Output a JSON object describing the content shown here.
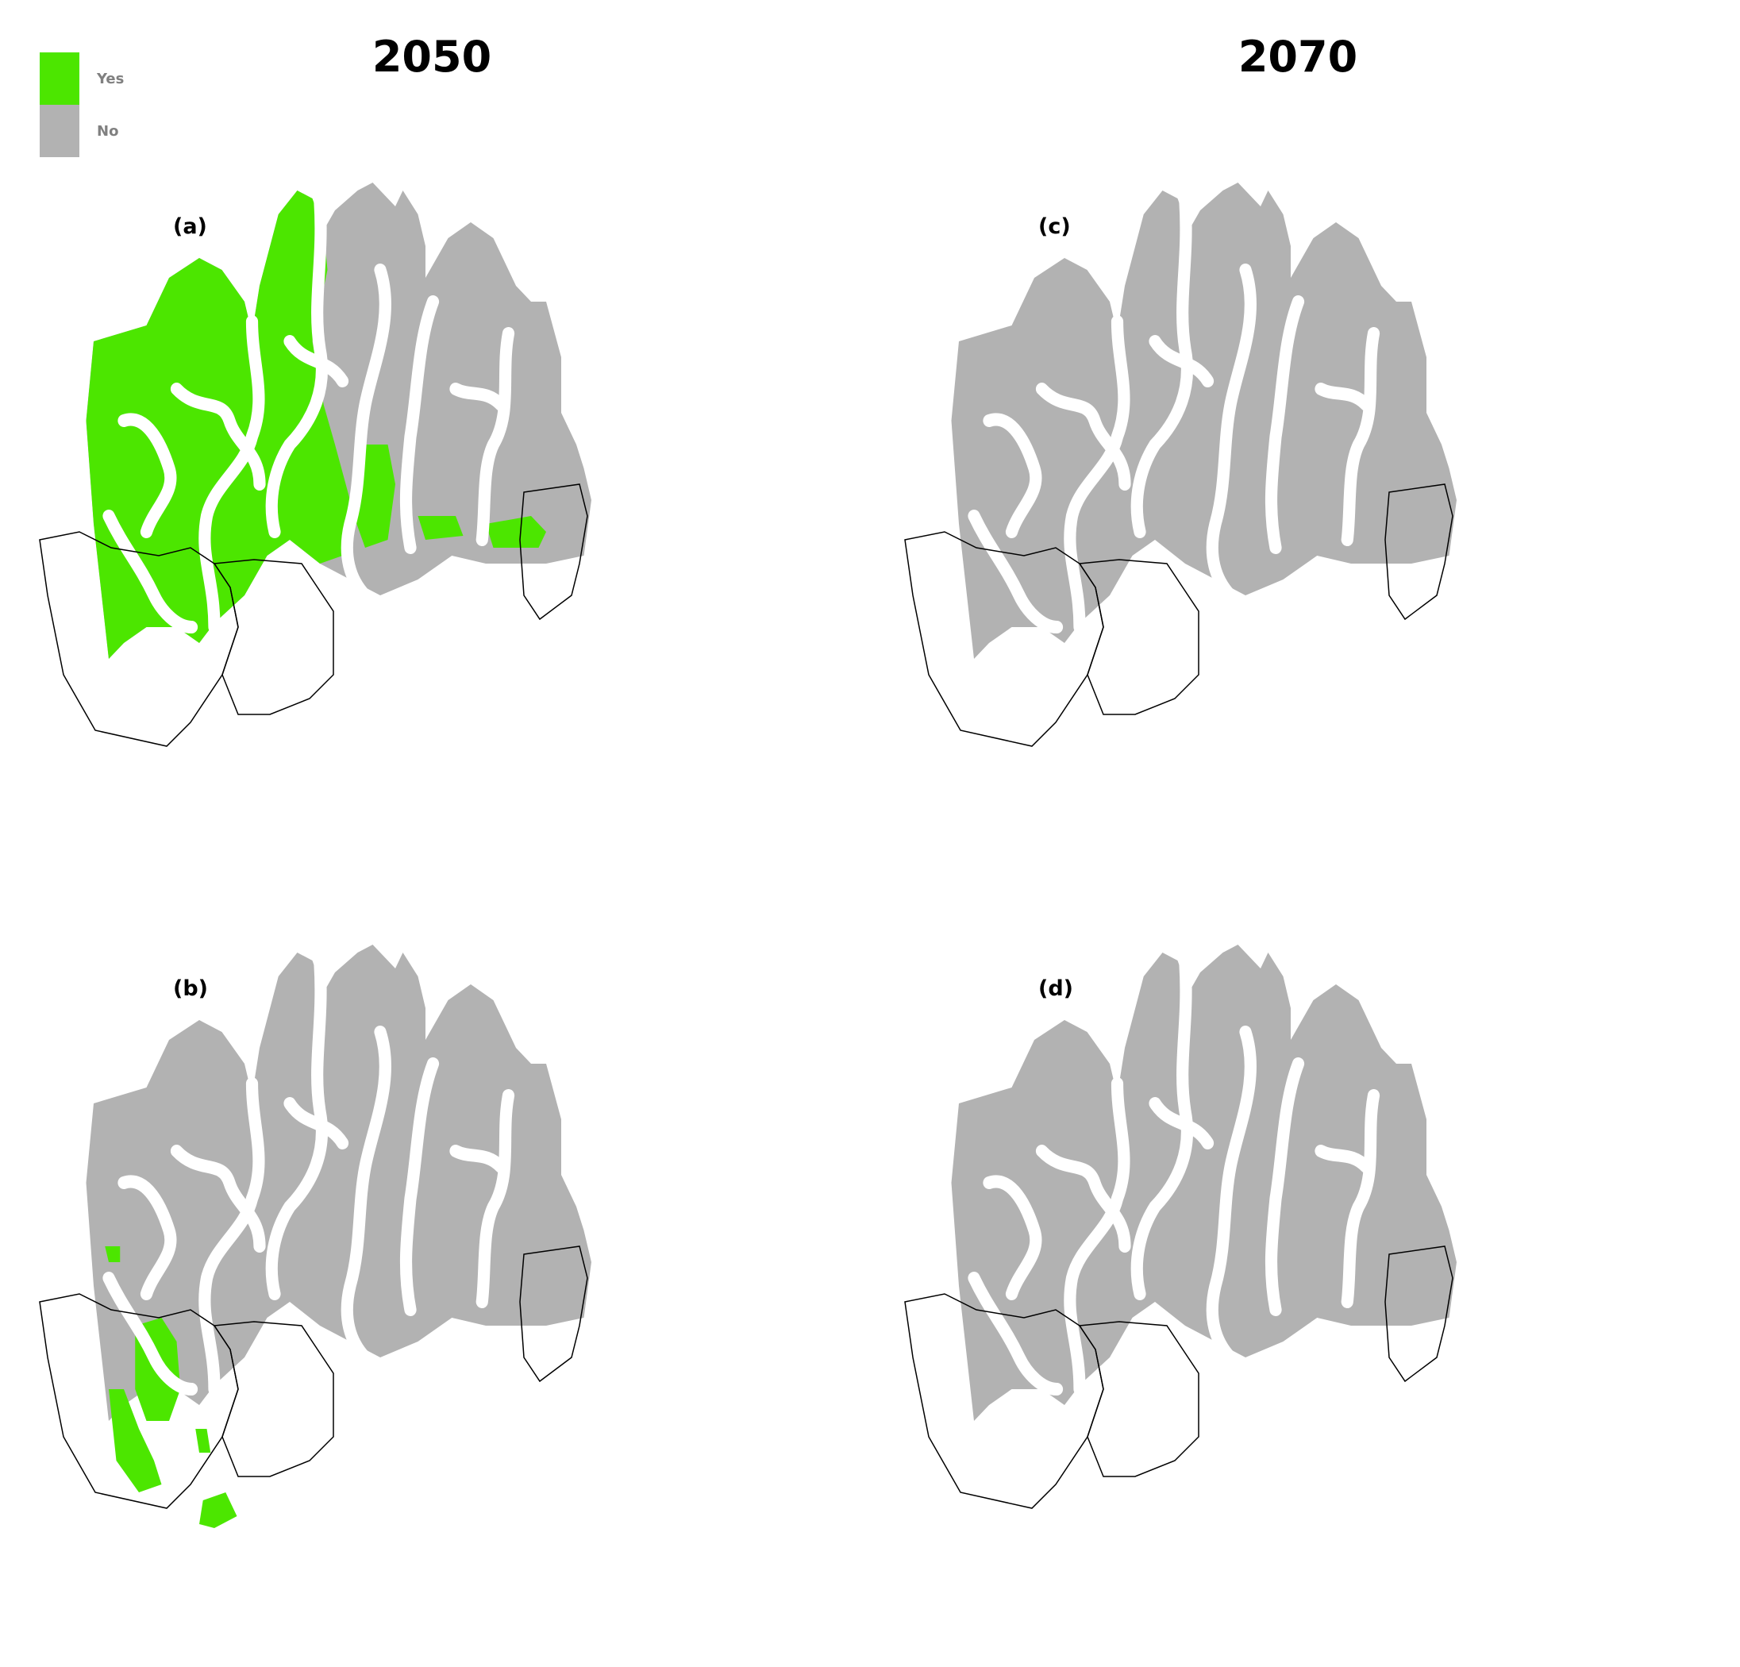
{
  "titles": {
    "left": "2050",
    "right": "2070"
  },
  "legend": [
    {
      "label": "Yes",
      "color": "#4ce600"
    },
    {
      "label": "No",
      "color": "#b2b2b2"
    }
  ],
  "panels": [
    {
      "id": "a",
      "label": "(a)",
      "year": "2050",
      "suitable": "large"
    },
    {
      "id": "b",
      "label": "(b)",
      "year": "2050",
      "suitable": "small"
    },
    {
      "id": "c",
      "label": "(c)",
      "year": "2070",
      "suitable": "none"
    },
    {
      "id": "d",
      "label": "(d)",
      "year": "2070",
      "suitable": "none"
    }
  ],
  "colors": {
    "yes": "#4ce600",
    "no": "#b2b2b2",
    "river": "#ffffff",
    "boundary": "#000000"
  }
}
